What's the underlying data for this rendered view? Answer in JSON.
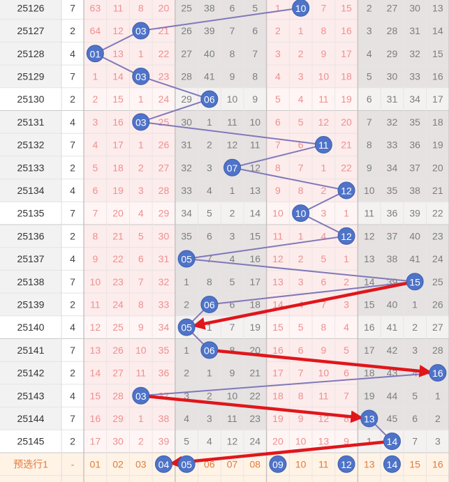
{
  "chart_data": {
    "type": "table",
    "columns": [
      "01",
      "02",
      "03",
      "04",
      "05",
      "06",
      "07",
      "08",
      "09",
      "10",
      "11",
      "12",
      "13",
      "14",
      "15",
      "16"
    ],
    "rows": [
      {
        "issue": "25126",
        "meta": "7",
        "cells": [
          63,
          11,
          8,
          20,
          25,
          38,
          6,
          5,
          1,
          null,
          7,
          15,
          2,
          27,
          30,
          13
        ],
        "hit": 10
      },
      {
        "issue": "25127",
        "meta": "2",
        "cells": [
          64,
          12,
          null,
          21,
          26,
          39,
          7,
          6,
          2,
          1,
          8,
          16,
          3,
          28,
          31,
          14
        ],
        "hit": 3
      },
      {
        "issue": "25128",
        "meta": "4",
        "cells": [
          null,
          13,
          1,
          22,
          27,
          40,
          8,
          7,
          3,
          2,
          9,
          17,
          4,
          29,
          32,
          15
        ],
        "hit": 1
      },
      {
        "issue": "25129",
        "meta": "7",
        "cells": [
          1,
          14,
          null,
          23,
          28,
          41,
          9,
          8,
          4,
          3,
          10,
          18,
          5,
          30,
          33,
          16
        ],
        "hit": 3
      },
      {
        "issue": "25130",
        "meta": "2",
        "cells": [
          2,
          15,
          1,
          24,
          29,
          null,
          10,
          9,
          5,
          4,
          11,
          19,
          6,
          31,
          34,
          17
        ],
        "hit": 6
      },
      {
        "issue": "25131",
        "meta": "4",
        "cells": [
          3,
          16,
          null,
          25,
          30,
          1,
          11,
          10,
          6,
          5,
          12,
          20,
          7,
          32,
          35,
          18
        ],
        "hit": 3
      },
      {
        "issue": "25132",
        "meta": "7",
        "cells": [
          4,
          17,
          1,
          26,
          31,
          2,
          12,
          11,
          7,
          6,
          null,
          21,
          8,
          33,
          36,
          19
        ],
        "hit": 11
      },
      {
        "issue": "25133",
        "meta": "2",
        "cells": [
          5,
          18,
          2,
          27,
          32,
          3,
          null,
          12,
          8,
          7,
          1,
          22,
          9,
          34,
          37,
          20
        ],
        "hit": 7
      },
      {
        "issue": "25134",
        "meta": "4",
        "cells": [
          6,
          19,
          3,
          28,
          33,
          4,
          1,
          13,
          9,
          8,
          2,
          null,
          10,
          35,
          38,
          21
        ],
        "hit": 12
      },
      {
        "issue": "25135",
        "meta": "7",
        "cells": [
          7,
          20,
          4,
          29,
          34,
          5,
          2,
          14,
          10,
          null,
          3,
          1,
          11,
          36,
          39,
          22
        ],
        "hit": 10
      },
      {
        "issue": "25136",
        "meta": "2",
        "cells": [
          8,
          21,
          5,
          30,
          35,
          6,
          3,
          15,
          11,
          1,
          4,
          null,
          12,
          37,
          40,
          23
        ],
        "hit": 12
      },
      {
        "issue": "25137",
        "meta": "4",
        "cells": [
          9,
          22,
          6,
          31,
          null,
          7,
          4,
          16,
          12,
          2,
          5,
          1,
          13,
          38,
          41,
          24
        ],
        "hit": 5
      },
      {
        "issue": "25138",
        "meta": "7",
        "cells": [
          10,
          23,
          7,
          32,
          1,
          8,
          5,
          17,
          13,
          3,
          6,
          2,
          14,
          39,
          null,
          25
        ],
        "hit": 15
      },
      {
        "issue": "25139",
        "meta": "2",
        "cells": [
          11,
          24,
          8,
          33,
          2,
          null,
          6,
          18,
          14,
          4,
          7,
          3,
          15,
          40,
          1,
          26
        ],
        "hit": 6
      },
      {
        "issue": "25140",
        "meta": "4",
        "cells": [
          12,
          25,
          9,
          34,
          null,
          1,
          7,
          19,
          15,
          5,
          8,
          4,
          16,
          41,
          2,
          27
        ],
        "hit": 5
      },
      {
        "issue": "25141",
        "meta": "7",
        "cells": [
          13,
          26,
          10,
          35,
          1,
          null,
          8,
          20,
          16,
          6,
          9,
          5,
          17,
          42,
          3,
          28
        ],
        "hit": 6
      },
      {
        "issue": "25142",
        "meta": "2",
        "cells": [
          14,
          27,
          11,
          36,
          2,
          1,
          9,
          21,
          17,
          7,
          10,
          6,
          18,
          43,
          4,
          null
        ],
        "hit": 16
      },
      {
        "issue": "25143",
        "meta": "4",
        "cells": [
          15,
          28,
          null,
          37,
          3,
          2,
          10,
          22,
          18,
          8,
          11,
          7,
          19,
          44,
          5,
          1
        ],
        "hit": 3
      },
      {
        "issue": "25144",
        "meta": "7",
        "cells": [
          16,
          29,
          1,
          38,
          4,
          3,
          11,
          23,
          19,
          9,
          12,
          8,
          null,
          45,
          6,
          2
        ],
        "hit": 13
      },
      {
        "issue": "25145",
        "meta": "2",
        "cells": [
          17,
          30,
          2,
          39,
          5,
          4,
          12,
          24,
          20,
          10,
          13,
          9,
          1,
          null,
          7,
          3
        ],
        "hit": 14
      }
    ],
    "footer": {
      "label": "预选行1",
      "meta": "-",
      "selected": [
        "04",
        "05",
        "09",
        "12",
        "14"
      ]
    },
    "line_color": "#8078b8",
    "arrow_color": "#e0161b",
    "ball_color": "#4e73c8",
    "arrows": [
      {
        "from": [
          25138,
          "15"
        ],
        "to": [
          25140,
          "05"
        ]
      },
      {
        "from": [
          25141,
          "06"
        ],
        "to": [
          25142,
          "16"
        ]
      },
      {
        "from": [
          25143,
          "03"
        ],
        "to": [
          25144,
          "13"
        ]
      },
      {
        "from": [
          25145,
          "14"
        ],
        "to": [
          "预选行1",
          "04"
        ]
      }
    ]
  }
}
